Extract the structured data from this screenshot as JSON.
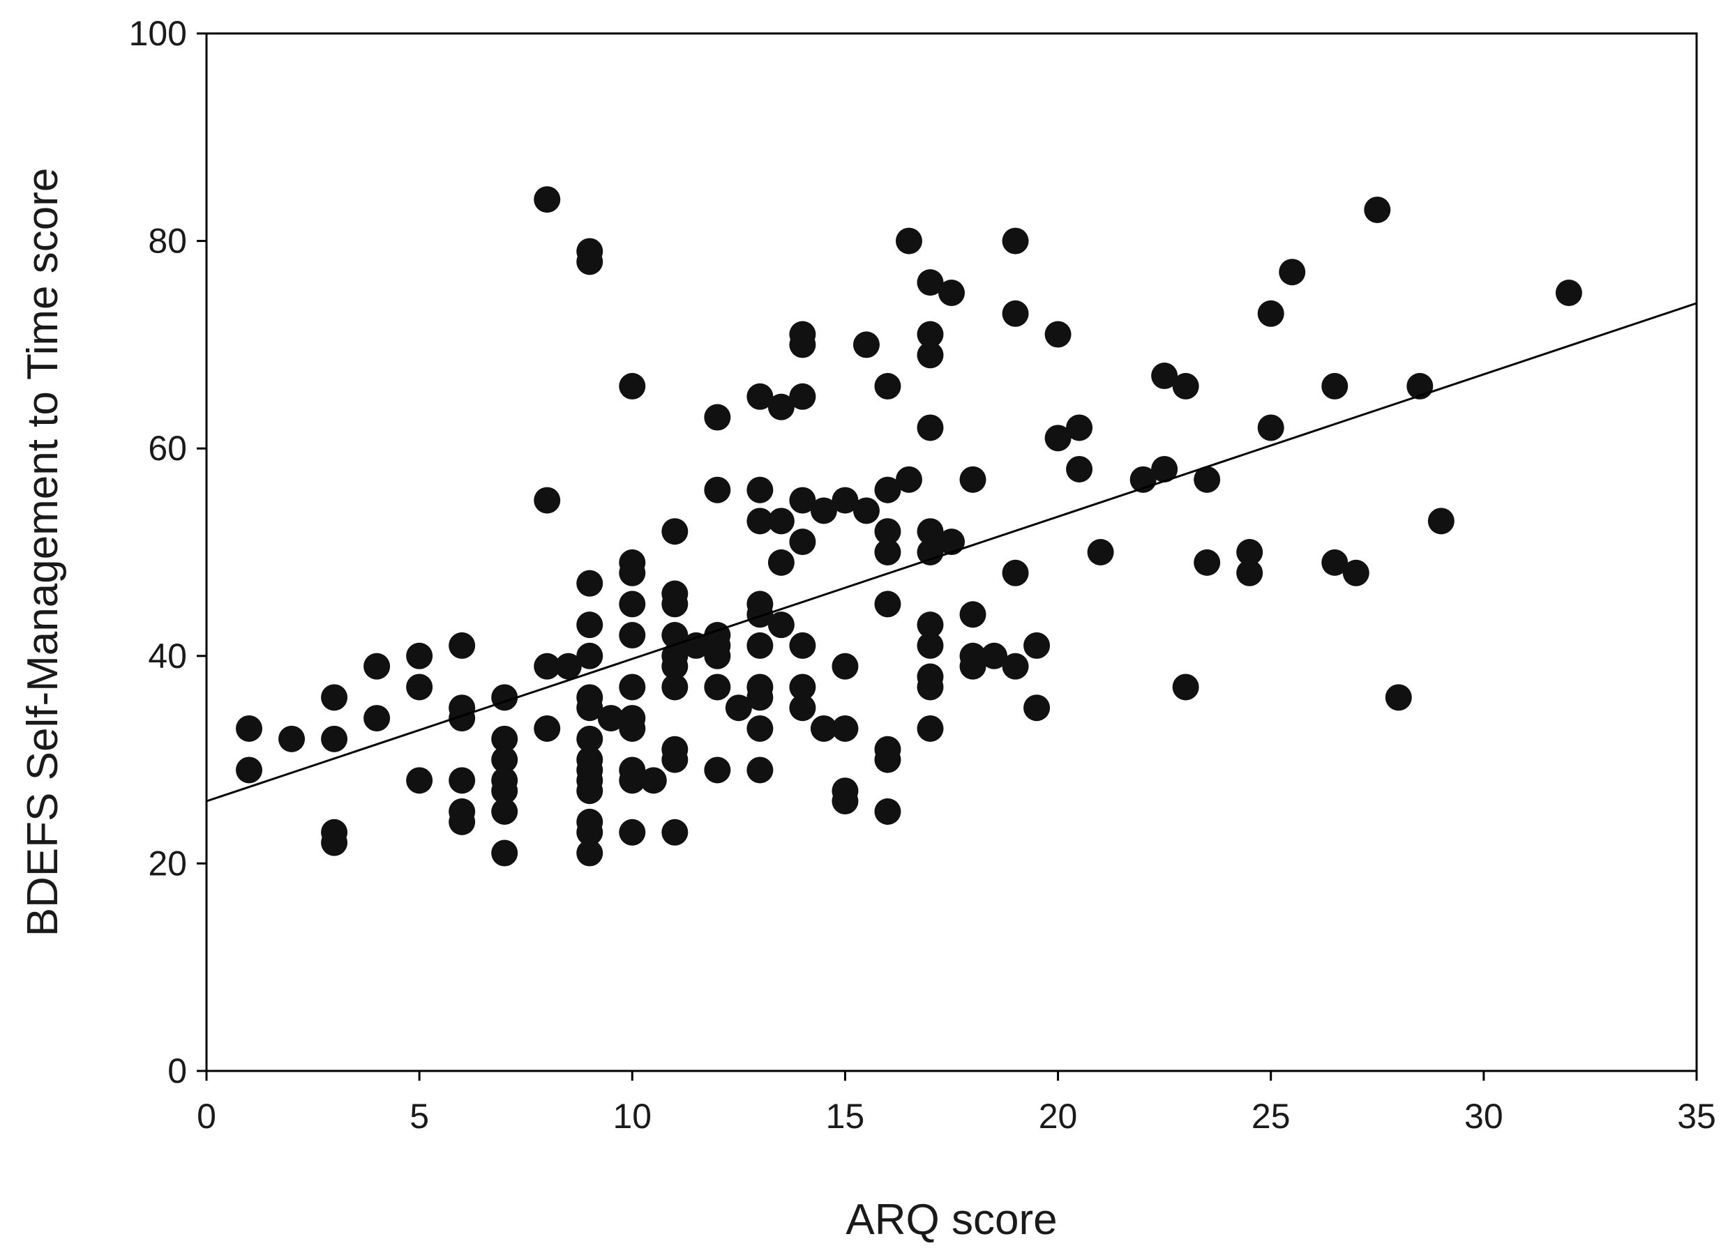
{
  "chart_data": {
    "type": "scatter",
    "title": "",
    "xlabel": "ARQ score",
    "ylabel": "BDEFS Self-Management to Time score",
    "xlim": [
      0,
      35
    ],
    "ylim": [
      0,
      100
    ],
    "xticks": [
      0,
      5,
      10,
      15,
      20,
      25,
      30,
      35
    ],
    "yticks": [
      0,
      20,
      40,
      60,
      80,
      100
    ],
    "grid": false,
    "legend": "none",
    "point_color": "#111111",
    "series": [
      {
        "points": [
          [
            1,
            33
          ],
          [
            1,
            29
          ],
          [
            2,
            32
          ],
          [
            3,
            36
          ],
          [
            3,
            32
          ],
          [
            3,
            23
          ],
          [
            3,
            22
          ],
          [
            4,
            39
          ],
          [
            4,
            34
          ],
          [
            5,
            40
          ],
          [
            5,
            37
          ],
          [
            5,
            28
          ],
          [
            6,
            41
          ],
          [
            6,
            35
          ],
          [
            6,
            34
          ],
          [
            6,
            28
          ],
          [
            6,
            25
          ],
          [
            6,
            24
          ],
          [
            7,
            36
          ],
          [
            7,
            32
          ],
          [
            7,
            30
          ],
          [
            7,
            28
          ],
          [
            7,
            27
          ],
          [
            7,
            25
          ],
          [
            7,
            21
          ],
          [
            8,
            84
          ],
          [
            8,
            55
          ],
          [
            8,
            39
          ],
          [
            8,
            33
          ],
          [
            8.5,
            39
          ],
          [
            9,
            79
          ],
          [
            9,
            78
          ],
          [
            9,
            47
          ],
          [
            9,
            43
          ],
          [
            9,
            40
          ],
          [
            9,
            36
          ],
          [
            9,
            35
          ],
          [
            9,
            32
          ],
          [
            9,
            30
          ],
          [
            9,
            29
          ],
          [
            9,
            28
          ],
          [
            9,
            27
          ],
          [
            9,
            24
          ],
          [
            9,
            23
          ],
          [
            9,
            21
          ],
          [
            9.5,
            34
          ],
          [
            10,
            66
          ],
          [
            10,
            49
          ],
          [
            10,
            48
          ],
          [
            10,
            45
          ],
          [
            10,
            42
          ],
          [
            10,
            37
          ],
          [
            10,
            34
          ],
          [
            10,
            33
          ],
          [
            10,
            29
          ],
          [
            10,
            28
          ],
          [
            10,
            23
          ],
          [
            10.5,
            28
          ],
          [
            11,
            52
          ],
          [
            11,
            46
          ],
          [
            11,
            45
          ],
          [
            11,
            42
          ],
          [
            11,
            40
          ],
          [
            11,
            39
          ],
          [
            11,
            37
          ],
          [
            11,
            31
          ],
          [
            11,
            30
          ],
          [
            11,
            23
          ],
          [
            11.5,
            41
          ],
          [
            12,
            63
          ],
          [
            12,
            56
          ],
          [
            12,
            42
          ],
          [
            12,
            41
          ],
          [
            12,
            40
          ],
          [
            12,
            37
          ],
          [
            12,
            29
          ],
          [
            12.5,
            35
          ],
          [
            13,
            65
          ],
          [
            13,
            56
          ],
          [
            13,
            53
          ],
          [
            13,
            45
          ],
          [
            13,
            44
          ],
          [
            13,
            41
          ],
          [
            13,
            37
          ],
          [
            13,
            36
          ],
          [
            13,
            33
          ],
          [
            13,
            29
          ],
          [
            13.5,
            64
          ],
          [
            13.5,
            53
          ],
          [
            13.5,
            49
          ],
          [
            13.5,
            43
          ],
          [
            14,
            71
          ],
          [
            14,
            70
          ],
          [
            14,
            65
          ],
          [
            14,
            55
          ],
          [
            14,
            51
          ],
          [
            14,
            41
          ],
          [
            14,
            37
          ],
          [
            14,
            35
          ],
          [
            14.5,
            54
          ],
          [
            14.5,
            33
          ],
          [
            15,
            55
          ],
          [
            15,
            39
          ],
          [
            15,
            33
          ],
          [
            15,
            27
          ],
          [
            15,
            26
          ],
          [
            15.5,
            70
          ],
          [
            15.5,
            54
          ],
          [
            16,
            66
          ],
          [
            16,
            56
          ],
          [
            16,
            52
          ],
          [
            16,
            50
          ],
          [
            16,
            45
          ],
          [
            16,
            31
          ],
          [
            16,
            30
          ],
          [
            16,
            25
          ],
          [
            16.5,
            80
          ],
          [
            16.5,
            57
          ],
          [
            17,
            76
          ],
          [
            17,
            71
          ],
          [
            17,
            69
          ],
          [
            17,
            62
          ],
          [
            17,
            52
          ],
          [
            17,
            50
          ],
          [
            17,
            43
          ],
          [
            17,
            41
          ],
          [
            17,
            38
          ],
          [
            17,
            37
          ],
          [
            17,
            33
          ],
          [
            17.5,
            75
          ],
          [
            17.5,
            51
          ],
          [
            18,
            57
          ],
          [
            18,
            44
          ],
          [
            18,
            40
          ],
          [
            18,
            39
          ],
          [
            18.5,
            40
          ],
          [
            19,
            80
          ],
          [
            19,
            73
          ],
          [
            19,
            48
          ],
          [
            19,
            39
          ],
          [
            19.5,
            41
          ],
          [
            19.5,
            35
          ],
          [
            20,
            71
          ],
          [
            20,
            61
          ],
          [
            20.5,
            62
          ],
          [
            20.5,
            58
          ],
          [
            21,
            50
          ],
          [
            22,
            57
          ],
          [
            22.5,
            67
          ],
          [
            22.5,
            58
          ],
          [
            23,
            66
          ],
          [
            23,
            37
          ],
          [
            23.5,
            57
          ],
          [
            23.5,
            49
          ],
          [
            24.5,
            50
          ],
          [
            24.5,
            48
          ],
          [
            25,
            73
          ],
          [
            25,
            62
          ],
          [
            25.5,
            77
          ],
          [
            26.5,
            66
          ],
          [
            26.5,
            49
          ],
          [
            27,
            48
          ],
          [
            27.5,
            83
          ],
          [
            28,
            36
          ],
          [
            28.5,
            66
          ],
          [
            29,
            53
          ],
          [
            32,
            75
          ]
        ]
      }
    ],
    "fit_line": {
      "x": [
        0,
        35
      ],
      "y": [
        26,
        74
      ]
    }
  }
}
